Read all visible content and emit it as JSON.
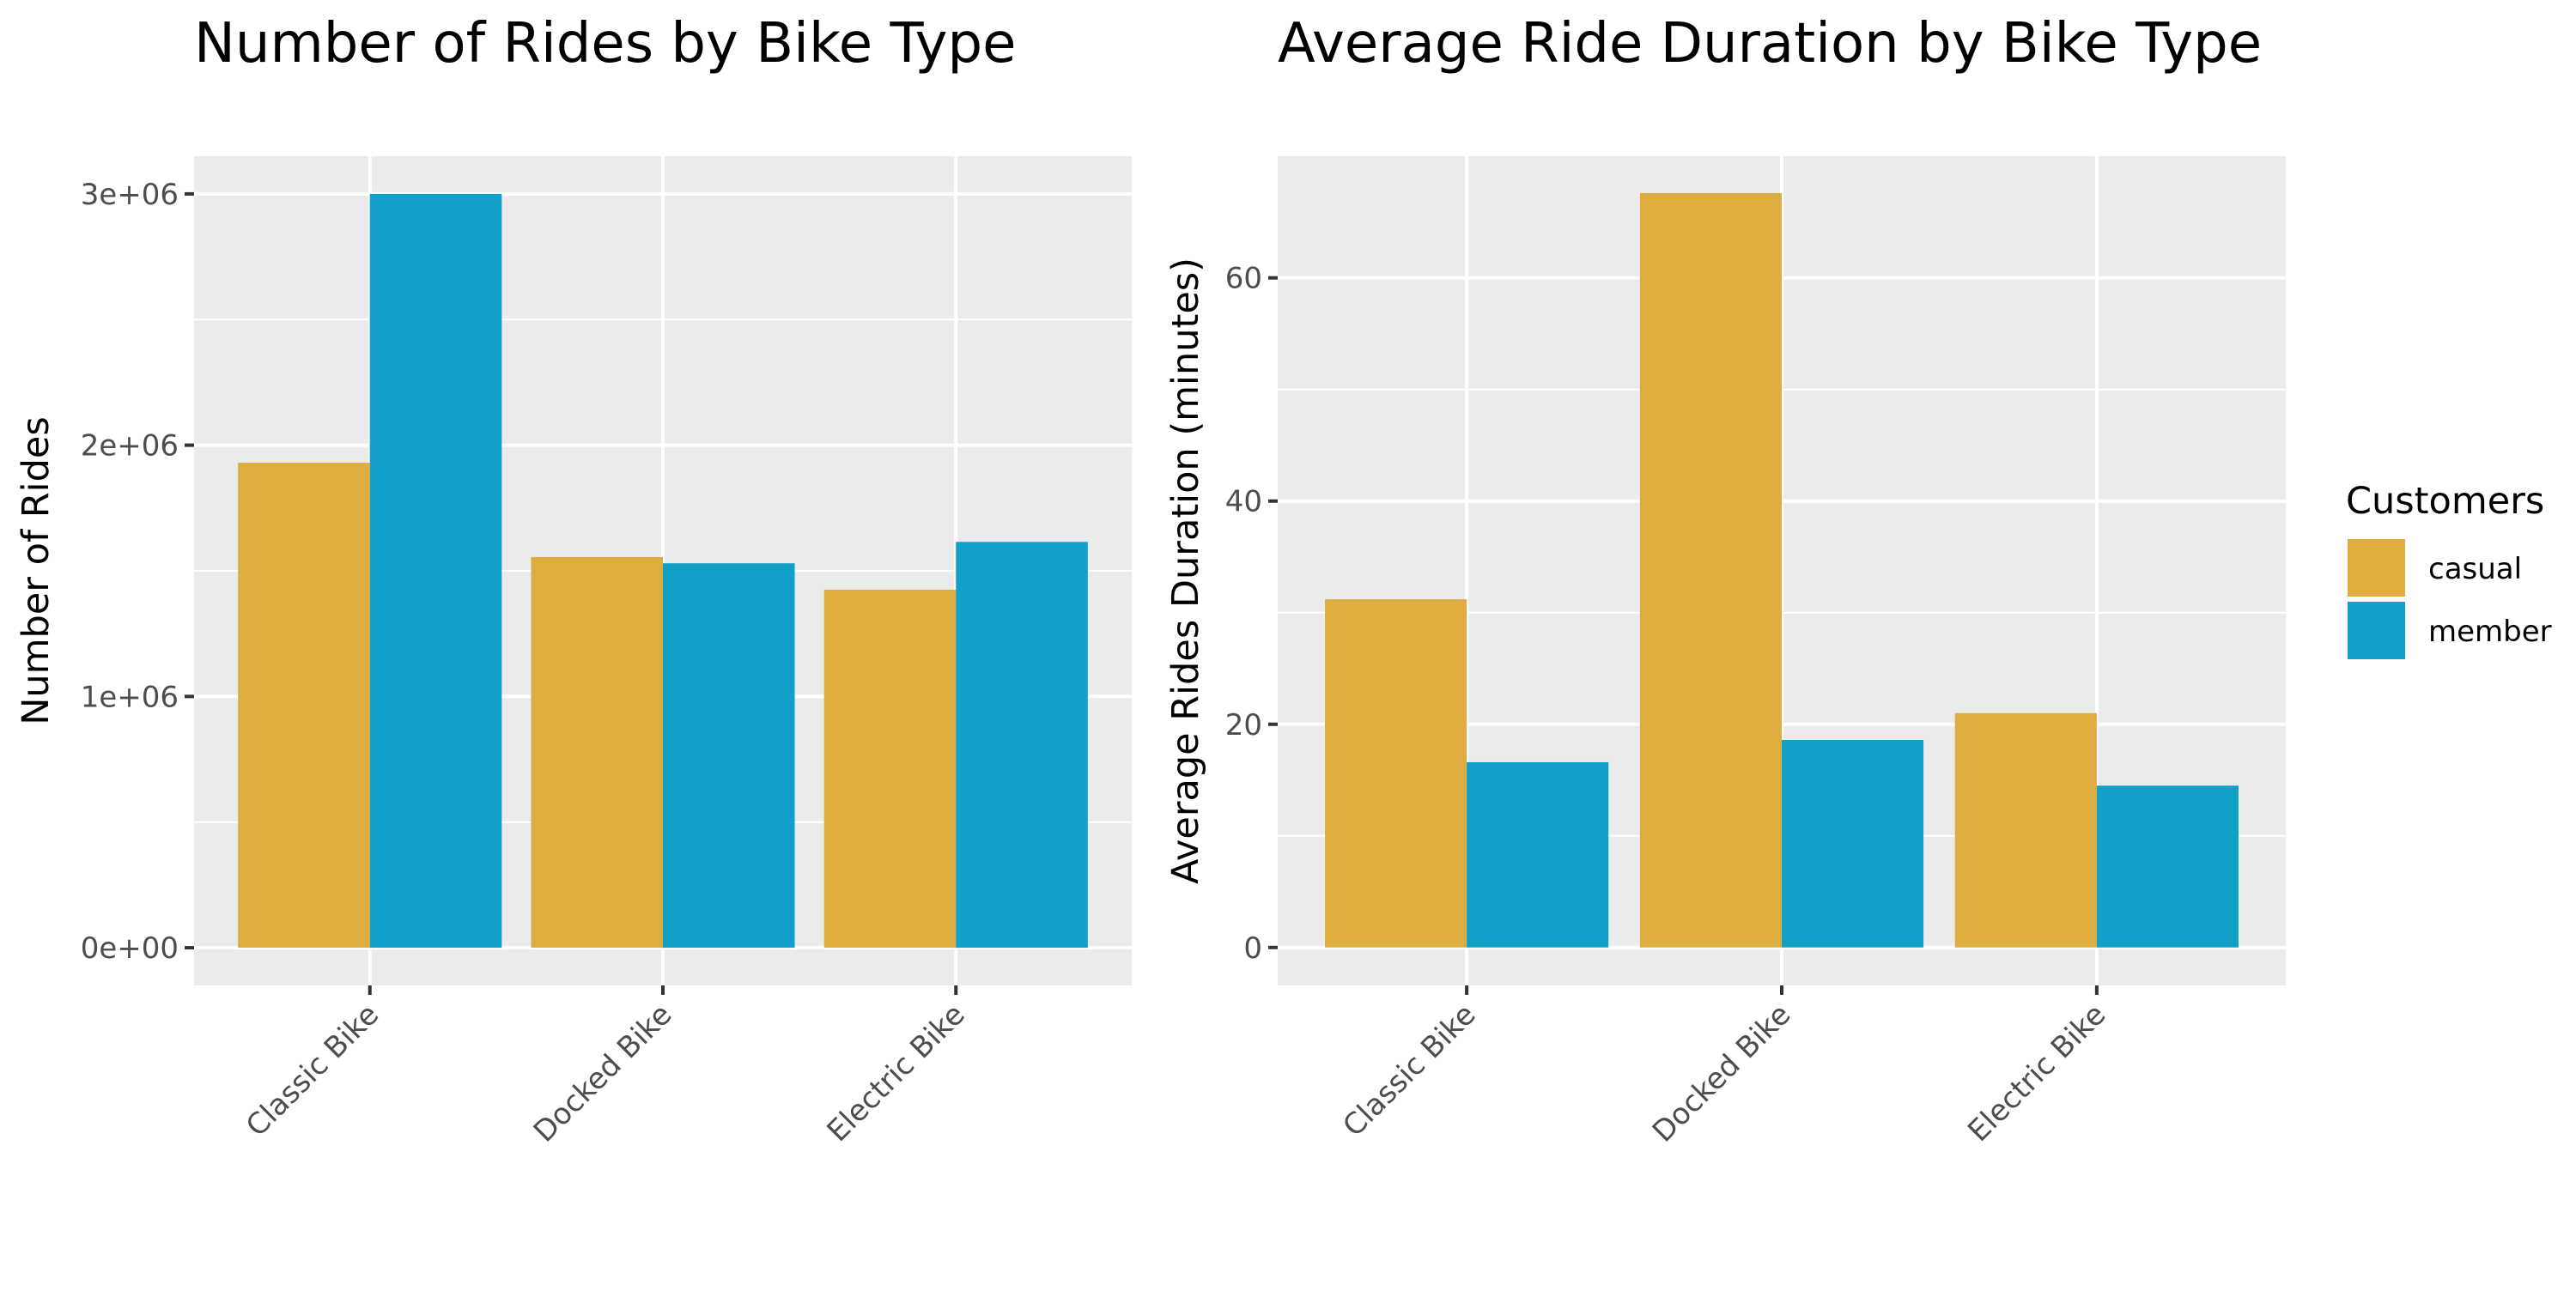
{
  "chart_data": [
    {
      "type": "bar",
      "title": "Number of Rides by Bike Type",
      "xlabel": "",
      "ylabel": "Number of Rides",
      "categories": [
        "Classic Bike",
        "Docked Bike",
        "Electric Bike"
      ],
      "series": [
        {
          "name": "casual",
          "color": "#DEAD40",
          "values": [
            1930000,
            1555000,
            1425000
          ]
        },
        {
          "name": "member",
          "color": "#10A0C8",
          "values": [
            3000000,
            1530000,
            1615000
          ]
        }
      ],
      "yticks": [
        0,
        1000000,
        2000000,
        3000000
      ],
      "ytick_labels": [
        "0e+00",
        "1e+06",
        "2e+06",
        "3e+06"
      ],
      "ylim": [
        -150000,
        3150000
      ],
      "grid": true,
      "x_tick_rotation": -45
    },
    {
      "type": "bar",
      "title": "Average Ride Duration by Bike Type",
      "xlabel": "",
      "ylabel": "Average Rides Duration (minutes)",
      "categories": [
        "Classic Bike",
        "Docked Bike",
        "Electric Bike"
      ],
      "series": [
        {
          "name": "casual",
          "color": "#DEAD40",
          "values": [
            31.2,
            67.6,
            21.0
          ]
        },
        {
          "name": "member",
          "color": "#10A0C8",
          "values": [
            16.6,
            18.6,
            14.5
          ]
        }
      ],
      "yticks": [
        0,
        20,
        40,
        60
      ],
      "ytick_labels": [
        "0",
        "20",
        "40",
        "60"
      ],
      "ylim": [
        -3.4,
        70.9
      ],
      "grid": true,
      "x_tick_rotation": -45
    }
  ],
  "legend": {
    "title": "Customers",
    "placement": "right",
    "items": [
      {
        "label": "casual",
        "color": "#DEAD40"
      },
      {
        "label": "member",
        "color": "#10A0C8"
      }
    ]
  },
  "style": {
    "panel_background": "#EBEBEB",
    "grid_color": "#FFFFFF",
    "tick_color": "#333333"
  }
}
